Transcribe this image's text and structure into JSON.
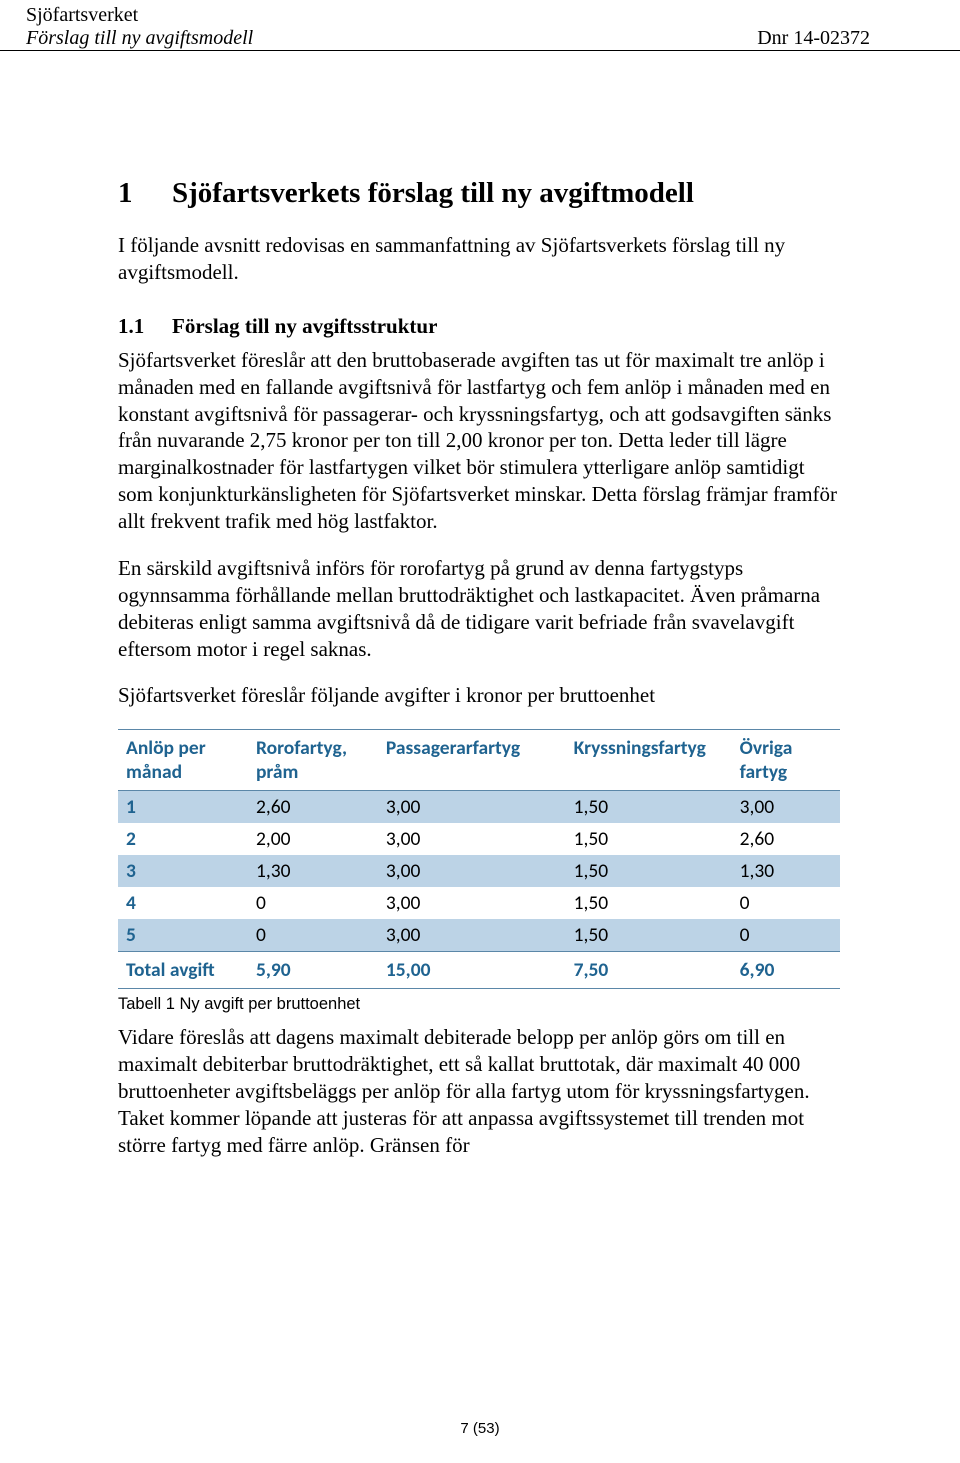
{
  "header": {
    "org": "Sjöfartsverket",
    "subtitle": "Förslag till ny avgiftsmodell",
    "dnr": "Dnr 14-02372"
  },
  "section": {
    "number": "1",
    "title": "Sjöfartsverkets förslag till ny avgiftmodell",
    "intro": "I följande avsnitt redovisas en sammanfattning av Sjöfartsverkets förslag till ny avgiftsmodell."
  },
  "subsection": {
    "number": "1.1",
    "title": "Förslag till ny avgiftsstruktur",
    "para1": "Sjöfartsverket föreslår att den bruttobaserade avgiften tas ut för maximalt tre anlöp i månaden med en fallande avgiftsnivå för lastfartyg och fem anlöp i månaden med en konstant avgiftsnivå för passagerar- och kryssningsfartyg, och att godsavgiften sänks från nuvarande 2,75 kronor per ton till 2,00 kronor per ton. Detta leder till lägre marginalkostnader för lastfartygen vilket bör stimulera ytterligare anlöp samtidigt som konjunkturkänsligheten för Sjöfartsverket minskar. Detta förslag främjar framför allt frekvent trafik med hög lastfaktor.",
    "para2": "En särskild avgiftsnivå införs för rorofartyg på grund av denna fartygstyps ogynnsamma förhållande mellan bruttodräktighet och lastkapacitet. Även pråmarna debiteras enligt samma avgiftsnivå då de tidigare varit befriade från svavelavgift eftersom motor i regel saknas.",
    "para3": "Sjöfartsverket föreslår följande avgifter i kronor per bruttoenhet"
  },
  "table": {
    "columns": [
      "Anlöp per månad",
      "Rorofartyg, pråm",
      "Passagerarfartyg",
      "Kryssningsfartyg",
      "Övriga fartyg"
    ],
    "rows": [
      {
        "label": "1",
        "vals": [
          "2,60",
          "3,00",
          "1,50",
          "3,00"
        ]
      },
      {
        "label": "2",
        "vals": [
          "2,00",
          "3,00",
          "1,50",
          "2,60"
        ]
      },
      {
        "label": "3",
        "vals": [
          "1,30",
          "3,00",
          "1,50",
          "1,30"
        ]
      },
      {
        "label": "4",
        "vals": [
          "0",
          "3,00",
          "1,50",
          "0"
        ]
      },
      {
        "label": "5",
        "vals": [
          "0",
          "3,00",
          "1,50",
          "0"
        ]
      }
    ],
    "total": {
      "label": "Total avgift",
      "vals": [
        "5,90",
        "15,00",
        "7,50",
        "6,90"
      ]
    },
    "caption": "Tabell 1 Ny avgift per bruttoenhet",
    "header_color": "#1f6390",
    "band_color": "#bcd3e6",
    "border_color": "#5b87a8"
  },
  "after_table": "Vidare föreslås att dagens maximalt debiterade belopp per anlöp görs om till en maximalt debiterbar bruttodräktighet, ett så kallat bruttotak, där maximalt 40 000 bruttoenheter avgiftsbeläggs per anlöp för alla fartyg utom för kryssningsfartygen. Taket kommer löpande att justeras för att anpassa avgiftssystemet till trenden mot större fartyg med färre anlöp. Gränsen för",
  "footer": "7 (53)"
}
